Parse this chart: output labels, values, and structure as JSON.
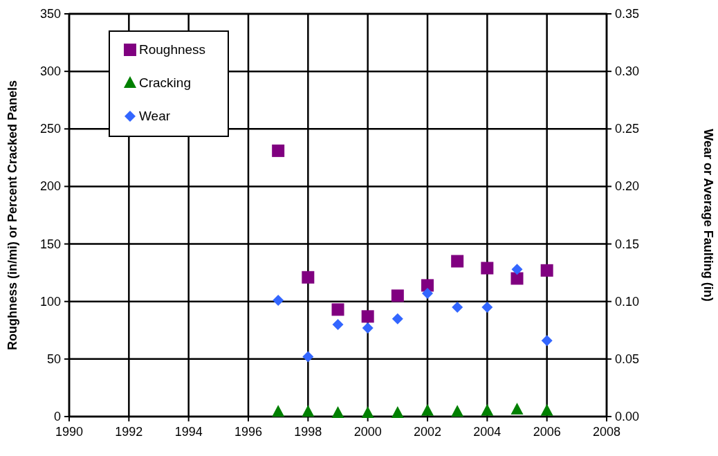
{
  "chart_data": {
    "type": "scatter",
    "ylabel": "Roughness (in/mi) or Percent Cracked Panels",
    "y2label": "Wear or Average Faulting (in)",
    "x": [
      1997,
      1998,
      1999,
      2000,
      2001,
      2002,
      2003,
      2004,
      2005,
      2006
    ],
    "series": [
      {
        "name": "Roughness",
        "color": "#800080",
        "marker": "square",
        "values": [
          231,
          121,
          93,
          87,
          105,
          114,
          135,
          129,
          120,
          127
        ]
      },
      {
        "name": "Cracking",
        "color": "#008000",
        "marker": "triangle",
        "values": [
          4,
          4,
          3,
          3,
          3,
          5,
          4,
          5,
          6,
          5
        ]
      },
      {
        "name": "Wear",
        "color": "#3366ff",
        "marker": "diamond",
        "axis": "y2",
        "values": [
          0.101,
          0.052,
          0.08,
          0.077,
          0.085,
          0.107,
          0.095,
          0.095,
          0.128,
          0.066
        ]
      }
    ],
    "xlim": [
      1990,
      2008
    ],
    "xticks": [
      1990,
      1992,
      1994,
      1996,
      1998,
      2000,
      2002,
      2004,
      2006,
      2008
    ],
    "ylim": [
      0,
      350
    ],
    "yticks": [
      0,
      50,
      100,
      150,
      200,
      250,
      300,
      350
    ],
    "y2lim": [
      0,
      0.35
    ],
    "y2ticks": [
      {
        "value": 0,
        "label": "0.00"
      },
      {
        "value": 0.05,
        "label": "0.05"
      },
      {
        "value": 0.1,
        "label": "0.10"
      },
      {
        "value": 0.15,
        "label": "0.15"
      },
      {
        "value": 0.2,
        "label": "0.20"
      },
      {
        "value": 0.25,
        "label": "0.25"
      },
      {
        "value": 0.3,
        "label": "0.30"
      },
      {
        "value": 0.35,
        "label": "0.35"
      }
    ],
    "grid": true,
    "legend": "top left"
  }
}
